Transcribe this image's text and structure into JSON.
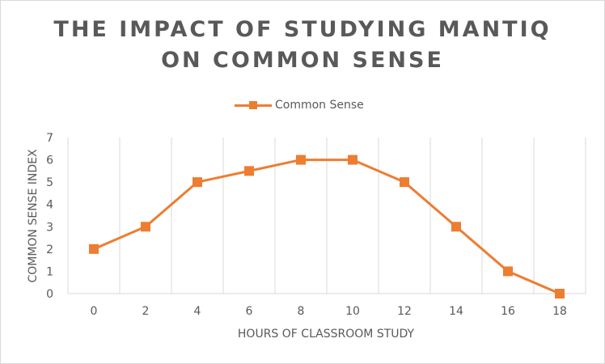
{
  "chart_data": {
    "type": "line",
    "title_line1": "THE IMPACT OF STUDYING MANTIQ",
    "title_line2": "ON COMMON SENSE",
    "xlabel": "HOURS OF CLASSROOM STUDY",
    "ylabel": "COMMON SENSE INDEX",
    "categories": [
      "0",
      "2",
      "4",
      "6",
      "8",
      "10",
      "12",
      "14",
      "16",
      "18"
    ],
    "series": [
      {
        "name": "Common Sense",
        "values": [
          2,
          3,
          5,
          5.5,
          6,
          6,
          5,
          3,
          1,
          0
        ]
      }
    ],
    "ylim": [
      0,
      7
    ],
    "yticks": [
      "0",
      "1",
      "2",
      "3",
      "4",
      "5",
      "6",
      "7"
    ],
    "grid": "vertical",
    "legend_position": "top",
    "colors": {
      "series": "#ED7D31",
      "grid": "#d9d9d9",
      "text": "#595959"
    }
  }
}
